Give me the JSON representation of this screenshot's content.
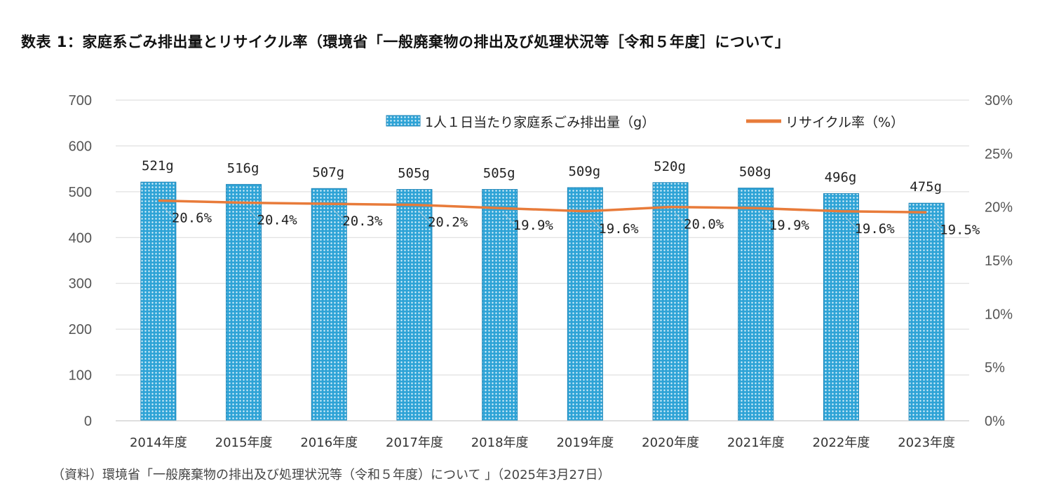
{
  "title": "数表 1：家庭系ごみ排出量とリサイクル率（環境省「一般廃棄物の排出及び処理状況等［令和５年度］について」",
  "source": "（資料）環境省「一般廃棄物の排出及び処理状況等（令和５年度）について 」（2025年3月27日）",
  "chart_data": {
    "type": "bar",
    "categories": [
      "2014年度",
      "2015年度",
      "2016年度",
      "2017年度",
      "2018年度",
      "2019年度",
      "2020年度",
      "2021年度",
      "2022年度",
      "2023年度"
    ],
    "series": [
      {
        "name": "1人１日当たり家庭系ごみ排出量（g）",
        "type": "bar",
        "axis": "left",
        "values": [
          521,
          516,
          507,
          505,
          505,
          509,
          520,
          508,
          496,
          475
        ],
        "labels": [
          "521g",
          "516g",
          "507g",
          "505g",
          "505g",
          "509g",
          "520g",
          "508g",
          "496g",
          "475g"
        ],
        "color": "#2ea3d6"
      },
      {
        "name": "リサイクル率（%）",
        "type": "line",
        "axis": "right",
        "values": [
          20.6,
          20.4,
          20.3,
          20.2,
          19.9,
          19.6,
          20.0,
          19.9,
          19.6,
          19.5
        ],
        "labels": [
          "20.6%",
          "20.4%",
          "20.3%",
          "20.2%",
          "19.9%",
          "19.6%",
          "20.0%",
          "19.9%",
          "19.6%",
          "19.5%"
        ],
        "color": "#e87b3a"
      }
    ],
    "y_left": {
      "min": 0,
      "max": 700,
      "ticks": [
        "0",
        "100",
        "200",
        "300",
        "400",
        "500",
        "600",
        "700"
      ]
    },
    "y_right": {
      "min": 0,
      "max": 30,
      "ticks": [
        "0%",
        "5%",
        "10%",
        "15%",
        "20%",
        "25%",
        "30%"
      ]
    },
    "grid": true,
    "legend_position": "top-right"
  }
}
